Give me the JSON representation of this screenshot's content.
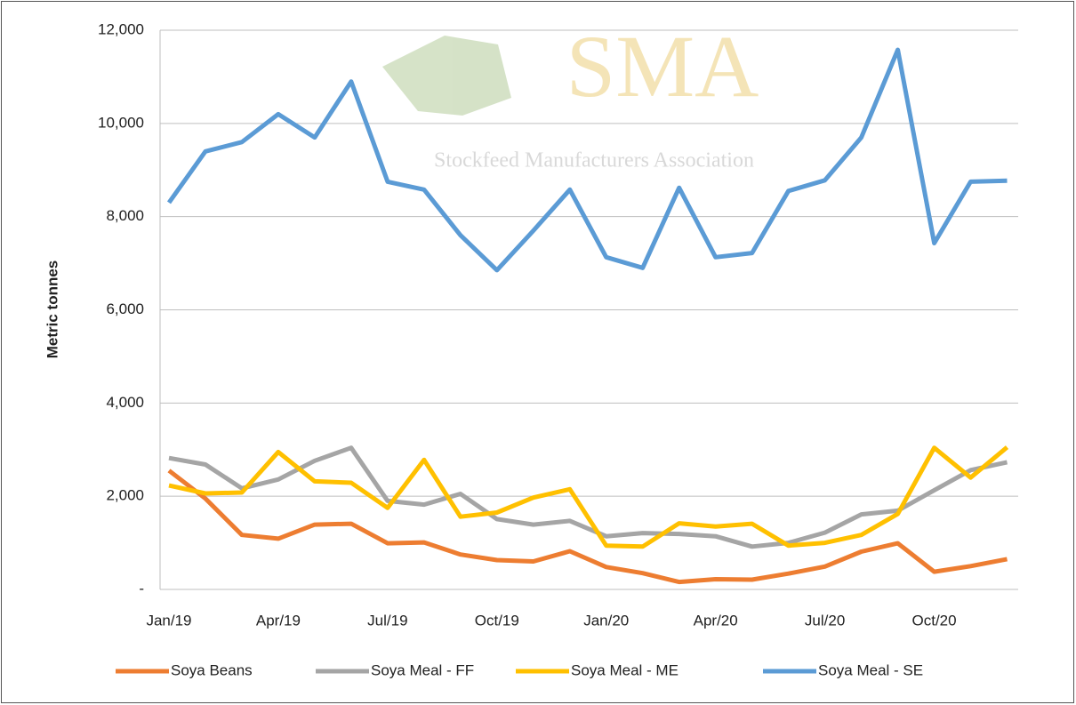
{
  "chart_data": {
    "type": "line",
    "y_label": "Metric tonnes",
    "watermark": {
      "title": "SMA",
      "subtitle": "Stockfeed Manufacturers Association"
    },
    "categories": [
      "Jan/19",
      null,
      null,
      "Apr/19",
      null,
      null,
      "Jul/19",
      null,
      null,
      "Oct/19",
      null,
      null,
      "Jan/20",
      null,
      null,
      "Apr/20",
      null,
      null,
      "Jul/20",
      null,
      null,
      "Oct/20",
      null,
      null
    ],
    "series": [
      {
        "name": "Soya Beans",
        "color": "#ed7d31",
        "values": [
          2550,
          1950,
          1170,
          1090,
          1390,
          1410,
          990,
          1010,
          750,
          630,
          600,
          820,
          480,
          350,
          160,
          220,
          210,
          340,
          490,
          810,
          990,
          380,
          500,
          650
        ]
      },
      {
        "name": "Soya Meal - FF",
        "color": "#a5a5a5",
        "values": [
          2820,
          2680,
          2170,
          2360,
          2760,
          3040,
          1900,
          1820,
          2050,
          1510,
          1390,
          1470,
          1140,
          1210,
          1190,
          1140,
          920,
          1000,
          1220,
          1610,
          1690,
          2130,
          2560,
          2730
        ]
      },
      {
        "name": "Soya Meal - ME",
        "color": "#ffc000",
        "values": [
          2230,
          2060,
          2080,
          2950,
          2320,
          2290,
          1750,
          2780,
          1560,
          1650,
          1970,
          2150,
          940,
          920,
          1420,
          1350,
          1410,
          940,
          1000,
          1170,
          1620,
          3040,
          2400,
          3050
        ]
      },
      {
        "name": "Soya Meal - SE",
        "color": "#5b9bd5",
        "values": [
          8300,
          9400,
          9600,
          10200,
          9700,
          10900,
          8750,
          8580,
          7600,
          6850,
          7700,
          8580,
          7130,
          6900,
          8620,
          7130,
          7220,
          8550,
          8780,
          9700,
          11580,
          7430,
          8750,
          8770
        ]
      }
    ],
    "ylim": [
      0,
      12000
    ],
    "yticks": [
      {
        "value": 0,
        "label": "-"
      },
      {
        "value": 2000,
        "label": "2,000"
      },
      {
        "value": 4000,
        "label": "4,000"
      },
      {
        "value": 6000,
        "label": "6,000"
      },
      {
        "value": 8000,
        "label": "8,000"
      },
      {
        "value": 10000,
        "label": "10,000"
      },
      {
        "value": 12000,
        "label": "12,000"
      }
    ],
    "grid": true,
    "legend": "bottom"
  }
}
